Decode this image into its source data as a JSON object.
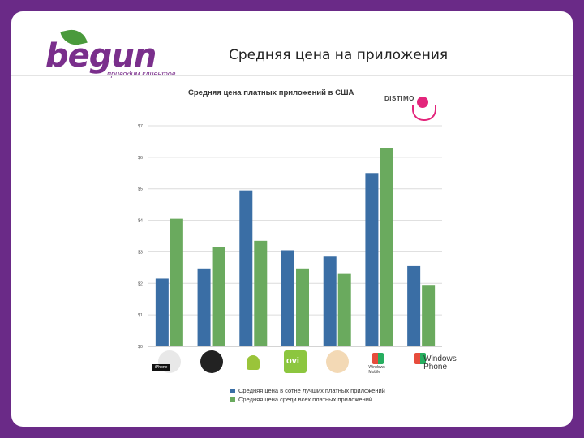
{
  "slide": {
    "title": "Средняя цена на приложения",
    "brand": {
      "name": "begun",
      "tagline": "приводим клиентов"
    }
  },
  "colors": {
    "series_top100": "#3a6ea5",
    "series_all": "#6aaa5e",
    "background": "#6a2a87"
  },
  "logo_text": "DISTIMO",
  "platforms": [
    {
      "name": "iPhone",
      "icon": "apple-icon",
      "label": "iPhone"
    },
    {
      "name": "BlackBerry",
      "icon": "blackberry-icon",
      "label": ""
    },
    {
      "name": "Android",
      "icon": "android-icon",
      "label": ""
    },
    {
      "name": "Ovi",
      "icon": "ovi-icon",
      "label": "ovi"
    },
    {
      "name": "Palm",
      "icon": "palm-icon",
      "label": ""
    },
    {
      "name": "Windows Mobile",
      "icon": "windows-mobile-icon",
      "label": "Windows Mobile"
    },
    {
      "name": "Windows Phone",
      "icon": "windows-phone-icon",
      "label": "Windows Phone"
    }
  ],
  "chart_data": {
    "type": "bar",
    "title": "Средняя цена платных приложений в США",
    "xlabel": "",
    "ylabel": "",
    "ylim": [
      0,
      7
    ],
    "yticks": [
      "$0",
      "$1",
      "$2",
      "$3",
      "$4",
      "$5",
      "$6",
      "$7"
    ],
    "grid": true,
    "legend_position": "bottom",
    "categories": [
      "iPhone",
      "BlackBerry",
      "Android",
      "Ovi",
      "Palm",
      "Windows Mobile",
      "Windows Phone"
    ],
    "series": [
      {
        "name": "Средняя цена в сотне лучших платных приложений",
        "values": [
          2.15,
          2.45,
          4.95,
          3.05,
          2.85,
          5.5,
          2.55
        ]
      },
      {
        "name": "Средняя цена среди всех платных приложений",
        "values": [
          4.05,
          3.15,
          3.35,
          2.45,
          2.3,
          6.3,
          1.95
        ]
      }
    ]
  }
}
